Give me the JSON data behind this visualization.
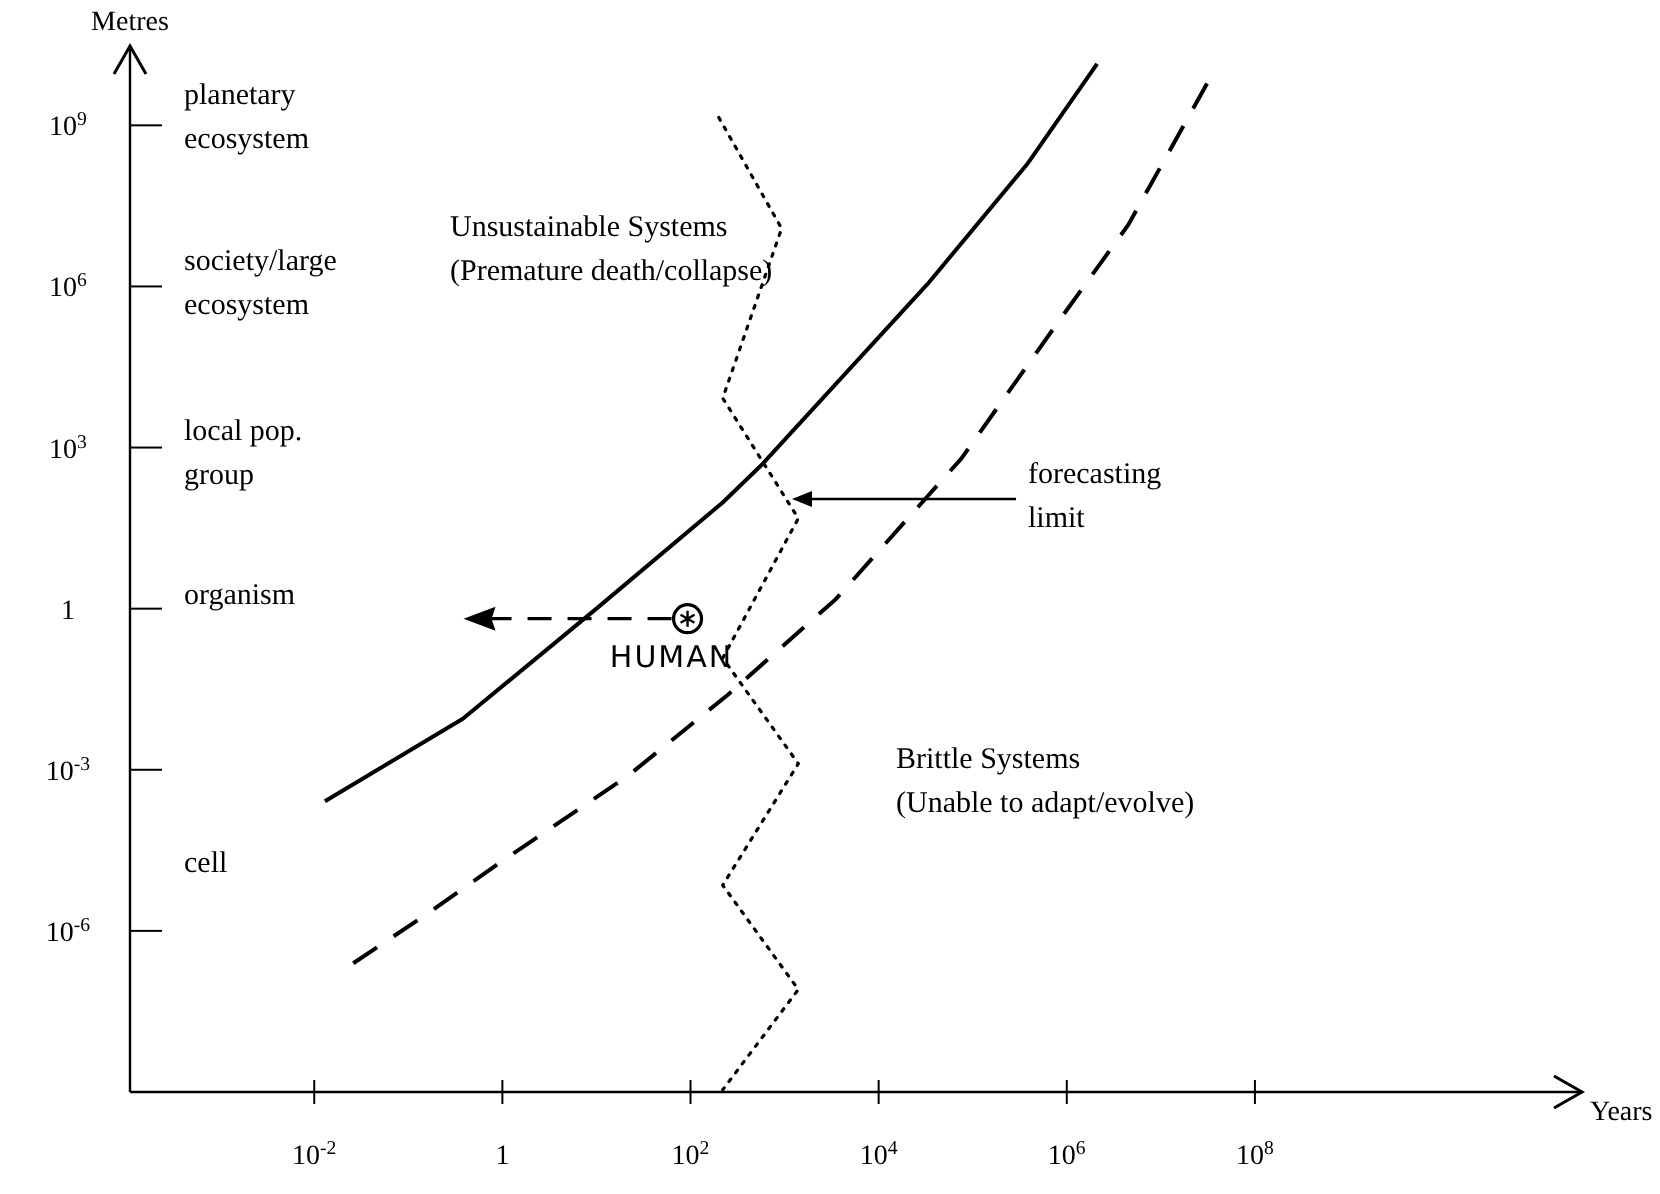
{
  "chart_data": {
    "type": "line",
    "xlabel": "Years",
    "ylabel": "Metres",
    "log": "xy",
    "grid": false,
    "marker": "none",
    "xlim": [
      0.00011,
      300000000000.0
    ],
    "ylim": [
      1e-09,
      30000000000.0
    ],
    "xticks": [
      {
        "value": 0.01,
        "label": "10$^{-2}$"
      },
      1,
      {
        "value": 100,
        "label": "10$^{2}$"
      },
      {
        "value": 10000,
        "label": "10$^{4}$"
      },
      {
        "value": 1000000,
        "label": "10$^{6}$"
      },
      {
        "value": 100000000,
        "label": "10$^{8}$"
      }
    ],
    "yticks": [
      {
        "value": 1e-06,
        "label": "10$^{-6}$"
      },
      {
        "value": 0.001,
        "label": "10$^{-3}$"
      },
      1,
      {
        "value": 1000,
        "label": "10$^{3}$"
      },
      {
        "value": 1000000,
        "label": "10$^{6}$"
      },
      {
        "value": 1000000000,
        "label": "10$^{9}$"
      }
    ],
    "series": [
      {
        "color": "#000000",
        "line_style": "solid",
        "x": [
          0.013,
          0.38,
          10,
          220,
          580,
          33000,
          380000,
          2100000
        ],
        "values": [
          0.00026,
          0.0089,
          1,
          95,
          490,
          1100000,
          190000000,
          14000000000
        ]
      },
      {
        "color": "#000000",
        "line_style": "dashed",
        "x": [
          0.026,
          0.16,
          0.87,
          22,
          250,
          3500,
          76000,
          870000,
          4500000,
          31000000
        ],
        "values": [
          2.5e-07,
          2.1e-06,
          1.7e-05,
          0.00079,
          0.025,
          1.5,
          630,
          260000,
          14000000,
          6000000000
        ]
      },
      {
        "color": "#000000",
        "line_style": "dotted",
        "x": [
          200,
          930,
          220,
          1400,
          220,
          1400,
          220,
          1400,
          220
        ],
        "values": [
          1400000000,
          12000000,
          8300,
          48,
          0.12,
          0.0013,
          7.1e-06,
          8.1e-08,
          1.1e-09
        ]
      }
    ],
    "annotations": [
      "planetary\necosystem",
      "society/large\necosystem",
      "local pop.\ngroup",
      "organism",
      "cell",
      "Unsustainable Systems\n(Premature death/collapse)",
      {
        "text": "forecasting\nlimit",
        "x": 1200,
        "y": 110
      },
      "Brittle Systems\n(Unable to adapt/evolve)",
      {
        "text": "HUMAN",
        "x": 93,
        "y": 0.65
      }
    ]
  }
}
